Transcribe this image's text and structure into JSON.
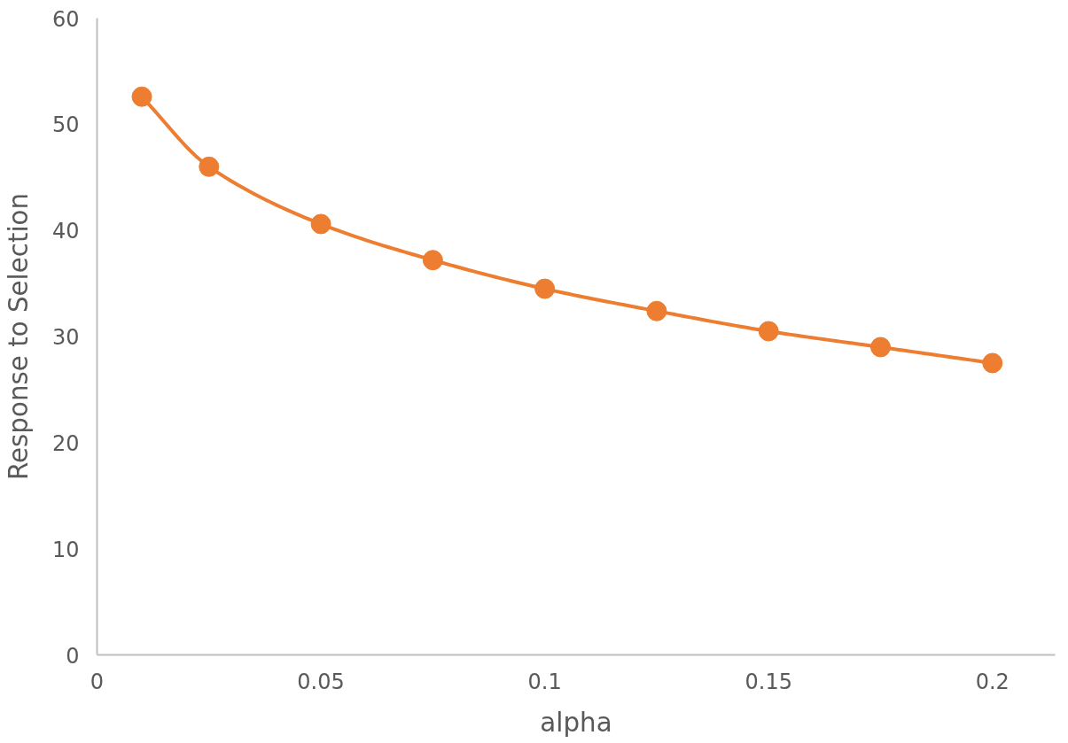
{
  "chart_data": {
    "type": "line",
    "xlabel": "alpha",
    "ylabel": "Response to Selection",
    "x": [
      0.01,
      0.025,
      0.05,
      0.075,
      0.1,
      0.125,
      0.15,
      0.175,
      0.2
    ],
    "series": [
      {
        "color": "#ed7d31",
        "values": [
          52.6,
          46.0,
          40.6,
          37.2,
          34.5,
          32.4,
          30.5,
          29.0,
          27.5
        ]
      }
    ],
    "xlim": [
      0,
      0.214
    ],
    "xticks": [
      0,
      0.05,
      0.1,
      0.15,
      0.2
    ],
    "ylim": [
      0,
      60
    ],
    "yticks": [
      0,
      10,
      20,
      30,
      40,
      50,
      60
    ],
    "grid": false,
    "marker": "circle",
    "line_style": "solid"
  }
}
